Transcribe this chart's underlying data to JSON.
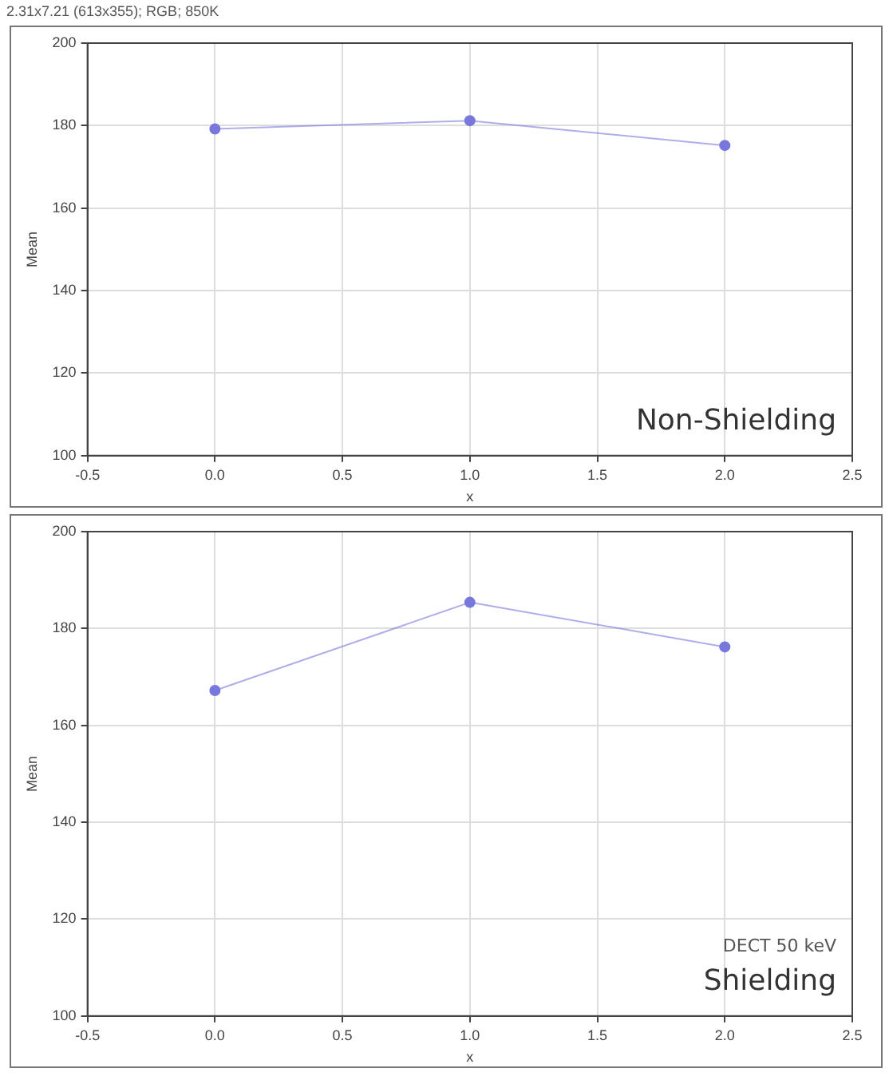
{
  "chart_data": [
    {
      "type": "line",
      "title": "2.31x7.21  (613x355); RGB; 850K",
      "xlabel": "x",
      "ylabel": "Mean",
      "x": [
        0,
        1,
        2
      ],
      "series": [
        {
          "color": "#7878dc",
          "values": [
            179.2,
            181.2,
            175.2
          ]
        }
      ],
      "xlim": [
        -0.5,
        2.5
      ],
      "xticks": [
        -0.5,
        {
          "value": 0,
          "label": "0.0"
        },
        0.5,
        {
          "value": 1,
          "label": "1.0"
        },
        1.5,
        {
          "value": 2,
          "label": "2.0"
        },
        2.5
      ],
      "ylim": [
        100,
        200
      ],
      "yticks": [
        100,
        120,
        140,
        160,
        180,
        200
      ],
      "grid": true,
      "legend": false,
      "marker": "circle",
      "line_style": "solid",
      "annotations": [
        "Non-Shielding"
      ]
    },
    {
      "type": "line",
      "xlabel": "x",
      "ylabel": "Mean",
      "x": [
        0,
        1,
        2
      ],
      "series": [
        {
          "color": "#7878dc",
          "values": [
            167.2,
            185.4,
            176.2
          ]
        }
      ],
      "xlim": [
        -0.5,
        2.5
      ],
      "xticks": [
        -0.5,
        {
          "value": 0,
          "label": "0.0"
        },
        0.5,
        {
          "value": 1,
          "label": "1.0"
        },
        1.5,
        {
          "value": 2,
          "label": "2.0"
        },
        2.5
      ],
      "ylim": [
        100,
        200
      ],
      "yticks": [
        100,
        120,
        140,
        160,
        180,
        200
      ],
      "grid": true,
      "legend": false,
      "marker": "circle",
      "line_style": "solid",
      "annotations": [
        "DECT 50 keV",
        "Shielding"
      ]
    }
  ]
}
